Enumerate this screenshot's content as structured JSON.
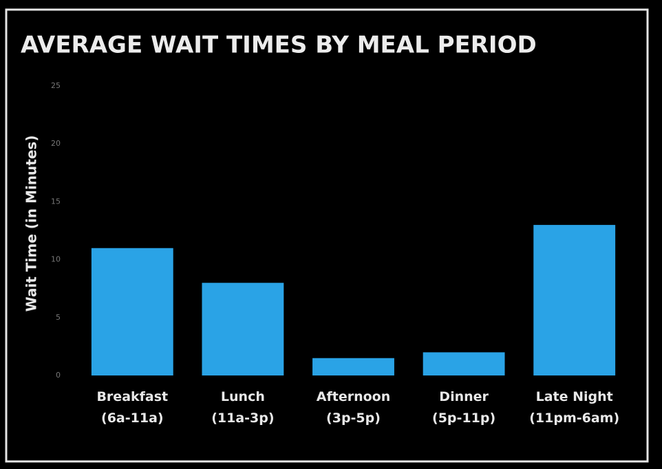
{
  "chart_data": {
    "type": "bar",
    "title": "AVERAGE WAIT TIMES BY MEAL PERIOD",
    "y_label": "Wait Time (in Minutes)",
    "categories": [
      "Breakfast\n(6a-11a)",
      "Lunch\n(11a-3p)",
      "Afternoon\n(3p-5p)",
      "Dinner\n(5p-11p)",
      "Late Night\n(11pm-6am)"
    ],
    "values": [
      11,
      8,
      1.5,
      2,
      13
    ],
    "color": "#2aa3e6",
    "ylim": [
      0,
      25
    ],
    "yticks": [
      0,
      5,
      10,
      15,
      20,
      25
    ],
    "grid": false
  }
}
